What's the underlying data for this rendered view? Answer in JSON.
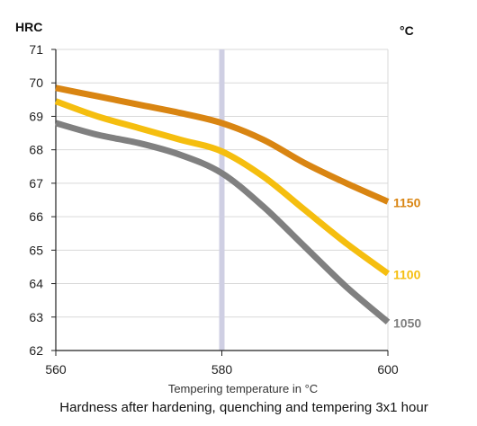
{
  "chart_data": {
    "type": "line",
    "ylabel": "HRC",
    "series_unit": "°C",
    "xlabel": "Tempering temperature in °C",
    "caption": "Hardness after hardening, quenching and tempering  3x1 hour",
    "xlim": [
      560,
      600
    ],
    "ylim": [
      62,
      71
    ],
    "xticks": [
      560,
      580,
      600
    ],
    "yticks": [
      62,
      63,
      64,
      65,
      66,
      67,
      68,
      69,
      70,
      71
    ],
    "grid": "horizontal",
    "highlight_x": 580,
    "series": [
      {
        "name": "1150",
        "color": "#D98512",
        "x": [
          560,
          565,
          570,
          575,
          580,
          585,
          590,
          595,
          600
        ],
        "y": [
          69.85,
          69.6,
          69.35,
          69.1,
          68.8,
          68.3,
          67.6,
          67.0,
          66.45
        ]
      },
      {
        "name": "1100",
        "color": "#F5BE0F",
        "x": [
          560,
          565,
          570,
          575,
          580,
          585,
          590,
          595,
          600
        ],
        "y": [
          69.45,
          69.0,
          68.65,
          68.3,
          67.95,
          67.2,
          66.2,
          65.2,
          64.3
        ]
      },
      {
        "name": "1050",
        "color": "#808080",
        "x": [
          560,
          565,
          570,
          575,
          580,
          585,
          590,
          595,
          600
        ],
        "y": [
          68.8,
          68.45,
          68.2,
          67.85,
          67.3,
          66.3,
          65.1,
          63.9,
          62.85
        ]
      }
    ]
  }
}
